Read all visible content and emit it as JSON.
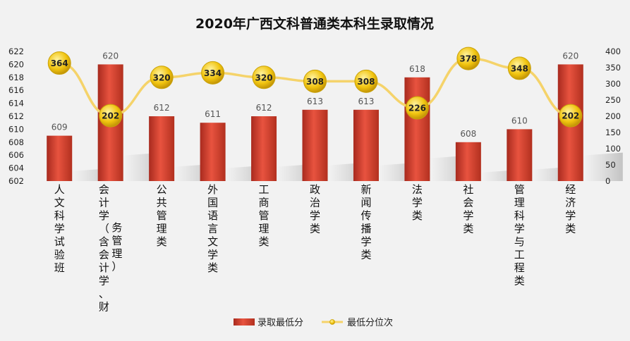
{
  "chart_data": {
    "type": "bar+line",
    "title": "2020年广西文科普通类本科生录取情况",
    "categories": [
      "人文科学试验班",
      "会计学（含会计学、财务管理）",
      "公共管理类",
      "外国语言文学类",
      "工商管理类",
      "政治学类",
      "新闻传播学类",
      "法学类",
      "社会学类",
      "管理科学与工程类",
      "经济学类"
    ],
    "category_columns": [
      [
        "人文科学试验班"
      ],
      [
        "会计学（含会计学、财",
        "务管理）"
      ],
      [
        "公共管理类"
      ],
      [
        "外国语言文学类"
      ],
      [
        "工商管理类"
      ],
      [
        "政治学类"
      ],
      [
        "新闻传播学类"
      ],
      [
        "法学类"
      ],
      [
        "社会学类"
      ],
      [
        "管理科学与工程类"
      ],
      [
        "经济学类"
      ]
    ],
    "series": [
      {
        "name": "录取最低分",
        "type": "bar",
        "axis": "left",
        "values": [
          609,
          620,
          612,
          611,
          612,
          613,
          613,
          618,
          608,
          610,
          620
        ]
      },
      {
        "name": "最低分位次",
        "type": "line",
        "axis": "right",
        "values": [
          364,
          202,
          320,
          334,
          320,
          308,
          308,
          226,
          378,
          348,
          202
        ]
      }
    ],
    "y_left": {
      "min": 602,
      "max": 622,
      "step": 2
    },
    "y_right": {
      "min": 0,
      "max": 400,
      "step": 50
    },
    "legend_position": "bottom",
    "colors": {
      "bar": "#c0392b",
      "bar_light": "#e8533f",
      "line": "#f5d36a",
      "marker": "#f0c419"
    }
  }
}
